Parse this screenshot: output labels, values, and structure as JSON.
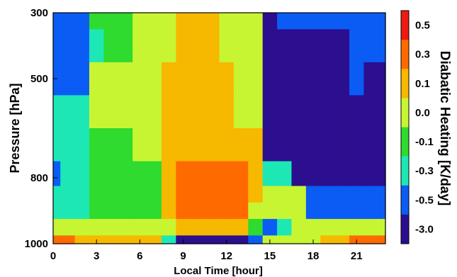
{
  "chart_data": {
    "type": "heatmap",
    "title": "",
    "xlabel": "Local Time [hour]",
    "ylabel": "Pressure [hPa]",
    "colorbar_label": "Diabatic Heating [K/day]",
    "xlim": [
      0,
      23
    ],
    "ylim": [
      1000,
      300
    ],
    "x_ticks": [
      0,
      3,
      6,
      9,
      12,
      15,
      18,
      21
    ],
    "y_ticks": [
      {
        "value": 300,
        "label": "300"
      },
      {
        "value": 500,
        "label": "500"
      },
      {
        "value": 800,
        "label": "800"
      },
      {
        "value": 1000,
        "label": "1000"
      }
    ],
    "colorbar": {
      "levels": [
        {
          "label": "-3.0",
          "color": "#2b0f8f"
        },
        {
          "label": "-0.5",
          "color": "#0a5cf5"
        },
        {
          "label": "-0.3",
          "color": "#1de8b5"
        },
        {
          "label": "-0.1",
          "color": "#2edb2e"
        },
        {
          "label": "0.0",
          "color": "#c8f532"
        },
        {
          "label": "0.1",
          "color": "#f7b800"
        },
        {
          "label": "0.3",
          "color": "#ff6a00"
        },
        {
          "label": "0.5",
          "color": "#f01a10"
        }
      ]
    },
    "levels_hpa": [
      300,
      400,
      500,
      600,
      700,
      800,
      850,
      900,
      950,
      1000
    ],
    "hours": [
      0,
      1,
      2,
      3,
      4,
      5,
      6,
      7,
      8,
      9,
      10,
      11,
      12,
      13,
      14,
      15,
      16,
      17,
      18,
      19,
      20,
      21,
      22,
      23
    ],
    "values": [
      [
        1,
        1,
        1,
        3,
        3,
        3,
        4,
        4,
        4,
        5,
        5,
        5,
        4,
        4,
        4,
        0,
        1,
        1,
        1,
        1,
        1,
        1,
        1,
        1
      ],
      [
        1,
        1,
        1,
        2,
        3,
        3,
        4,
        4,
        4,
        5,
        5,
        5,
        4,
        4,
        4,
        0,
        0,
        0,
        0,
        0,
        0,
        1,
        1,
        1
      ],
      [
        1,
        1,
        1,
        4,
        4,
        4,
        4,
        4,
        5,
        5,
        5,
        5,
        5,
        4,
        4,
        0,
        0,
        0,
        0,
        0,
        0,
        1,
        0,
        0
      ],
      [
        2,
        2,
        2,
        4,
        4,
        4,
        4,
        4,
        5,
        5,
        5,
        5,
        5,
        4,
        4,
        0,
        0,
        0,
        0,
        0,
        0,
        0,
        0,
        0
      ],
      [
        2,
        2,
        2,
        3,
        3,
        3,
        4,
        4,
        5,
        5,
        5,
        5,
        5,
        5,
        5,
        0,
        0,
        0,
        0,
        0,
        0,
        0,
        0,
        0
      ],
      [
        1,
        2,
        2,
        3,
        3,
        3,
        3,
        3,
        5,
        6,
        6,
        6,
        6,
        6,
        5,
        2,
        2,
        0,
        0,
        0,
        0,
        0,
        0,
        0
      ],
      [
        2,
        2,
        2,
        3,
        3,
        3,
        3,
        3,
        5,
        6,
        6,
        6,
        6,
        6,
        5,
        4,
        4,
        4,
        1,
        1,
        1,
        1,
        1,
        1
      ],
      [
        2,
        2,
        2,
        3,
        3,
        3,
        3,
        3,
        5,
        6,
        6,
        6,
        6,
        6,
        4,
        4,
        4,
        4,
        1,
        1,
        1,
        1,
        1,
        1
      ],
      [
        4,
        4,
        4,
        4,
        4,
        4,
        4,
        4,
        4,
        5,
        5,
        5,
        5,
        5,
        3,
        1,
        2,
        4,
        4,
        4,
        4,
        4,
        4,
        4
      ],
      [
        6,
        6,
        5,
        5,
        5,
        5,
        5,
        5,
        2,
        0,
        0,
        0,
        0,
        0,
        1,
        4,
        4,
        4,
        4,
        5,
        5,
        6,
        6,
        6
      ]
    ]
  }
}
